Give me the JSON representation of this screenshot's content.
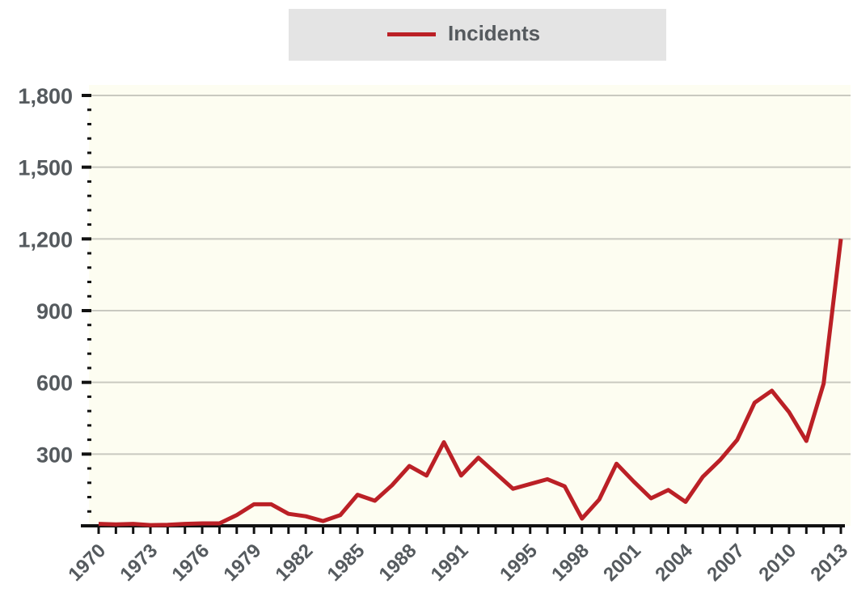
{
  "legend": {
    "series_label": "Incidents"
  },
  "colors": {
    "line": "#bb2026",
    "plot_background": "#fdfdf1",
    "grid": "#c9c9c0",
    "axis": "#111111",
    "tick_label": "#555a5e",
    "legend_background": "#e4e4e4"
  },
  "chart_data": {
    "type": "line",
    "title": "",
    "xlabel": "",
    "ylabel": "",
    "ylim": [
      0,
      1800
    ],
    "xlim": [
      1970,
      2013
    ],
    "grid": "horizontal",
    "legend_position": "top",
    "y_ticks": [
      "300",
      "600",
      "900",
      "1,200",
      "1,500",
      "1,800"
    ],
    "x_ticks": [
      "1970",
      "1973",
      "1976",
      "1979",
      "1982",
      "1985",
      "1988",
      "1991",
      "1995",
      "1998",
      "2001",
      "2004",
      "2007",
      "2010",
      "2013"
    ],
    "series": [
      {
        "name": "Incidents",
        "x": [
          1970,
          1971,
          1972,
          1973,
          1974,
          1975,
          1976,
          1977,
          1978,
          1979,
          1980,
          1981,
          1982,
          1983,
          1984,
          1985,
          1986,
          1987,
          1988,
          1989,
          1990,
          1991,
          1992,
          1994,
          1995,
          1996,
          1997,
          1998,
          1999,
          2000,
          2001,
          2002,
          2003,
          2004,
          2005,
          2006,
          2007,
          2008,
          2009,
          2010,
          2011,
          2012,
          2013
        ],
        "values": [
          8,
          6,
          8,
          3,
          4,
          8,
          10,
          10,
          45,
          90,
          90,
          50,
          40,
          20,
          45,
          130,
          105,
          170,
          250,
          210,
          350,
          210,
          285,
          155,
          175,
          195,
          165,
          30,
          110,
          260,
          185,
          115,
          150,
          100,
          205,
          275,
          360,
          515,
          565,
          475,
          355,
          595,
          1200
        ]
      }
    ]
  }
}
